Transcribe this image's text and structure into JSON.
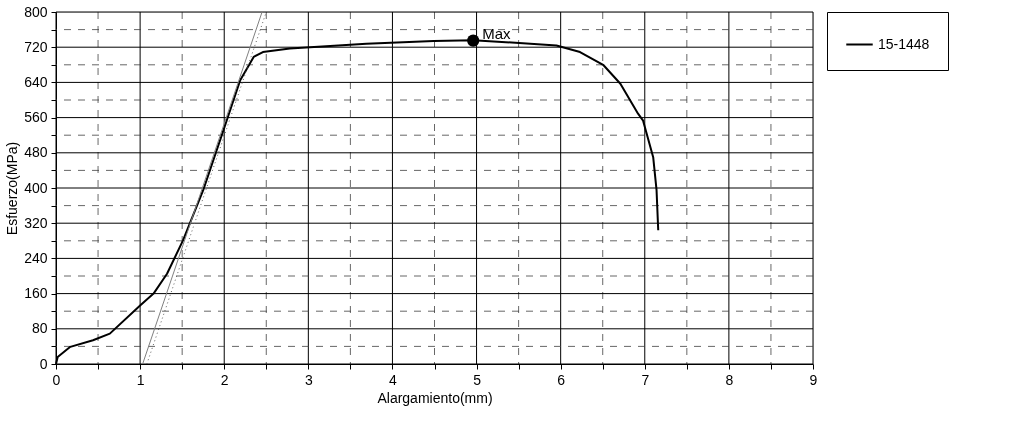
{
  "chart_data": {
    "type": "line",
    "xlabel": "Alargamiento(mm)",
    "ylabel": "Esfuerzo(MPa)",
    "xlim": [
      0,
      9
    ],
    "ylim": [
      0,
      800
    ],
    "xticks": [
      0,
      {
        "value": 0.5,
        "label": null
      },
      1,
      {
        "value": 1.5,
        "label": null
      },
      2,
      {
        "value": 2.5,
        "label": null
      },
      3,
      {
        "value": 3.5,
        "label": null
      },
      4,
      {
        "value": 4.5,
        "label": null
      },
      5,
      {
        "value": 5.5,
        "label": null
      },
      6,
      {
        "value": 6.5,
        "label": null
      },
      7,
      {
        "value": 7.5,
        "label": null
      },
      8,
      {
        "value": 8.5,
        "label": null
      },
      9
    ],
    "yticks": [
      0,
      {
        "value": 40,
        "label": null
      },
      80,
      {
        "value": 120,
        "label": null
      },
      160,
      {
        "value": 200,
        "label": null
      },
      240,
      {
        "value": 280,
        "label": null
      },
      320,
      {
        "value": 360,
        "label": null
      },
      400,
      {
        "value": 440,
        "label": null
      },
      480,
      {
        "value": 520,
        "label": null
      },
      560,
      {
        "value": 600,
        "label": null
      },
      640,
      {
        "value": 680,
        "label": null
      },
      720,
      {
        "value": 760,
        "label": null
      },
      800
    ],
    "grid": true,
    "legend": "top right",
    "series": [
      {
        "name": "15-1448",
        "color": "#000000",
        "line_style": "solid",
        "marker": "none",
        "x": [
          0,
          0.02,
          0.17,
          0.44,
          0.64,
          1.0,
          1.16,
          1.32,
          1.51,
          1.75,
          1.99,
          2.19,
          2.35,
          2.46,
          2.78,
          3.02,
          3.69,
          4.49,
          4.96,
          5.95,
          6.23,
          6.51,
          6.71,
          6.92,
          6.98,
          7.1,
          7.14,
          7.16
        ],
        "values": [
          0,
          16,
          39,
          54,
          69,
          133,
          160,
          205,
          281,
          395,
          531,
          645,
          698,
          709,
          717,
          720,
          728,
          734,
          736,
          724,
          709,
          679,
          637,
          569,
          553,
          470,
          395,
          304
        ]
      },
      {
        "type": "line",
        "color": "#808080",
        "line_style": "solid",
        "marker": "none",
        "x": [
          1.03,
          2.45
        ],
        "values": [
          0,
          800
        ]
      },
      {
        "type": "line",
        "color": "#606060",
        "line_style": "dotted",
        "marker": "none",
        "x": [
          1.08,
          2.5
        ],
        "values": [
          0,
          800
        ]
      },
      {
        "type": "scatter",
        "color": "#000000",
        "marker": "circle",
        "x": [
          4.96
        ],
        "values": [
          735
        ]
      }
    ],
    "annotations": [
      {
        "text": "Max",
        "x": 4.96,
        "y": 735
      }
    ]
  }
}
